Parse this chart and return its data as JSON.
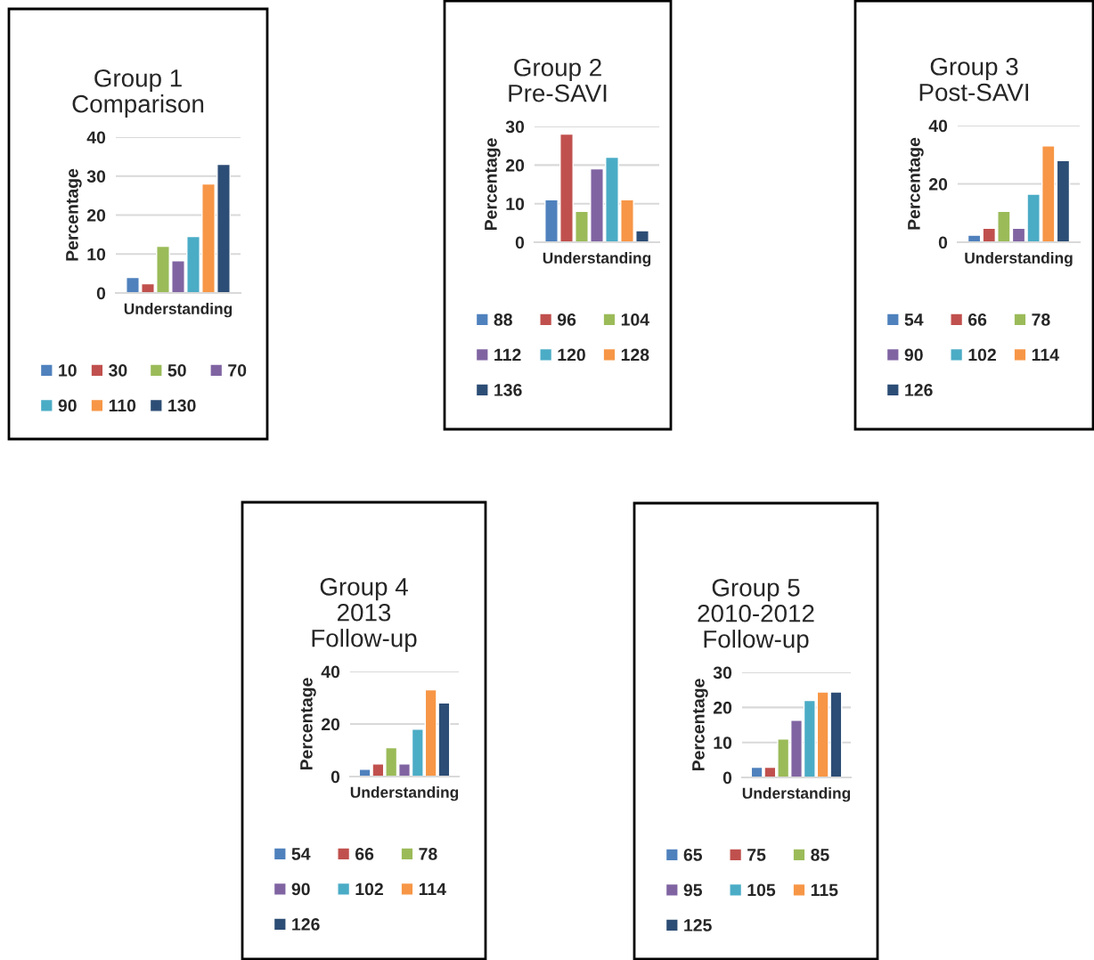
{
  "chart_data": [
    {
      "type": "bar",
      "title": "Group 1\nComparison",
      "ylabel": "Percentage",
      "categories": [
        "Understanding"
      ],
      "ylim": [
        0,
        40
      ],
      "yticks": [
        0,
        10,
        20,
        30,
        40
      ],
      "grid": "y",
      "legend": "bottom",
      "series": [
        {
          "name": "10",
          "color": "#4f81bd",
          "values": [
            4
          ]
        },
        {
          "name": "30",
          "color": "#c0504d",
          "values": [
            2.4
          ]
        },
        {
          "name": "50",
          "color": "#9bbb59",
          "values": [
            12
          ]
        },
        {
          "name": "70",
          "color": "#8064a2",
          "values": [
            8.3
          ]
        },
        {
          "name": "90",
          "color": "#4bacc6",
          "values": [
            14.5
          ]
        },
        {
          "name": "110",
          "color": "#f79646",
          "values": [
            28
          ]
        },
        {
          "name": "130",
          "color": "#2c4d75",
          "values": [
            33
          ]
        }
      ]
    },
    {
      "type": "bar",
      "title": "Group 2\nPre-SAVI",
      "ylabel": "Percentage",
      "categories": [
        "Understanding"
      ],
      "ylim": [
        0,
        30
      ],
      "yticks": [
        0,
        10,
        20,
        30
      ],
      "grid": "y",
      "legend": "bottom",
      "series": [
        {
          "name": "88",
          "color": "#4f81bd",
          "values": [
            11
          ]
        },
        {
          "name": "96",
          "color": "#c0504d",
          "values": [
            28
          ]
        },
        {
          "name": "104",
          "color": "#9bbb59",
          "values": [
            8
          ]
        },
        {
          "name": "112",
          "color": "#8064a2",
          "values": [
            19
          ]
        },
        {
          "name": "120",
          "color": "#4bacc6",
          "values": [
            22
          ]
        },
        {
          "name": "128",
          "color": "#f79646",
          "values": [
            11
          ]
        },
        {
          "name": "136",
          "color": "#2c4d75",
          "values": [
            3
          ]
        }
      ]
    },
    {
      "type": "bar",
      "title": "Group 3\nPost-SAVI",
      "ylabel": "Percentage",
      "categories": [
        "Understanding"
      ],
      "ylim": [
        0,
        40
      ],
      "yticks": [
        0,
        20,
        40
      ],
      "grid": "y",
      "legend": "bottom",
      "series": [
        {
          "name": "54",
          "color": "#4f81bd",
          "values": [
            2.4
          ]
        },
        {
          "name": "66",
          "color": "#c0504d",
          "values": [
            4.8
          ]
        },
        {
          "name": "78",
          "color": "#9bbb59",
          "values": [
            10.6
          ]
        },
        {
          "name": "90",
          "color": "#8064a2",
          "values": [
            4.8
          ]
        },
        {
          "name": "102",
          "color": "#4bacc6",
          "values": [
            16.5
          ]
        },
        {
          "name": "114",
          "color": "#f79646",
          "values": [
            33
          ]
        },
        {
          "name": "126",
          "color": "#2c4d75",
          "values": [
            28
          ]
        }
      ]
    },
    {
      "type": "bar",
      "title": "Group 4\n2013\nFollow-up",
      "ylabel": "Percentage",
      "categories": [
        "Understanding"
      ],
      "ylim": [
        0,
        40
      ],
      "yticks": [
        0,
        20,
        40
      ],
      "grid": "y",
      "legend": "bottom",
      "series": [
        {
          "name": "54",
          "color": "#4f81bd",
          "values": [
            2.8
          ]
        },
        {
          "name": "66",
          "color": "#c0504d",
          "values": [
            4.8
          ]
        },
        {
          "name": "78",
          "color": "#9bbb59",
          "values": [
            11
          ]
        },
        {
          "name": "90",
          "color": "#8064a2",
          "values": [
            4.8
          ]
        },
        {
          "name": "102",
          "color": "#4bacc6",
          "values": [
            18
          ]
        },
        {
          "name": "114",
          "color": "#f79646",
          "values": [
            33
          ]
        },
        {
          "name": "126",
          "color": "#2c4d75",
          "values": [
            28
          ]
        }
      ]
    },
    {
      "type": "bar",
      "title": "Group 5\n2010-2012\nFollow-up",
      "ylabel": "Percentage",
      "categories": [
        "Understanding"
      ],
      "ylim": [
        0,
        30
      ],
      "yticks": [
        0,
        10,
        20,
        30
      ],
      "grid": "y",
      "legend": "bottom",
      "series": [
        {
          "name": "65",
          "color": "#4f81bd",
          "values": [
            2.9
          ]
        },
        {
          "name": "75",
          "color": "#c0504d",
          "values": [
            2.9
          ]
        },
        {
          "name": "85",
          "color": "#9bbb59",
          "values": [
            11
          ]
        },
        {
          "name": "95",
          "color": "#8064a2",
          "values": [
            16.3
          ]
        },
        {
          "name": "105",
          "color": "#4bacc6",
          "values": [
            22
          ]
        },
        {
          "name": "115",
          "color": "#f79646",
          "values": [
            24.4
          ]
        },
        {
          "name": "125",
          "color": "#2c4d75",
          "values": [
            24.4
          ]
        }
      ]
    }
  ]
}
